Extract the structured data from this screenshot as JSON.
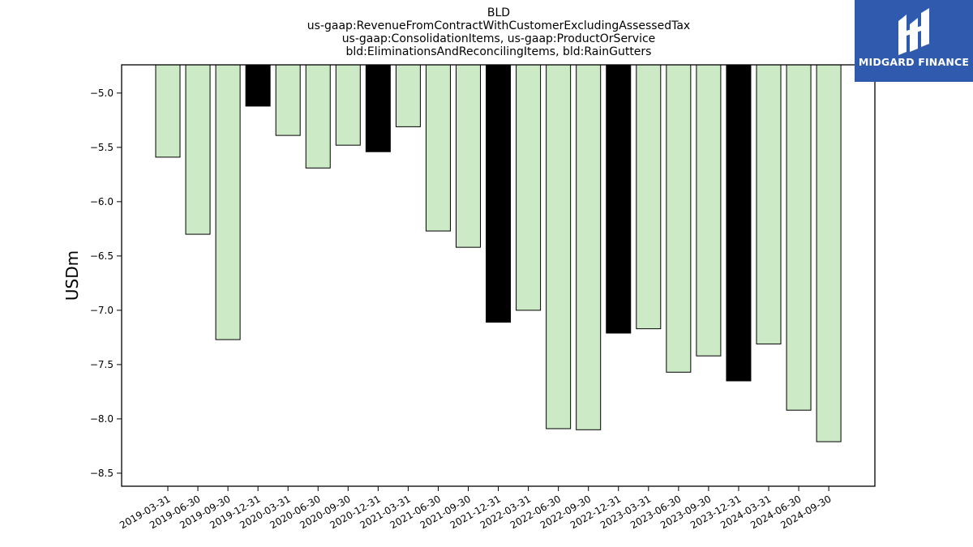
{
  "title_lines": [
    "BLD",
    "us-gaap:RevenueFromContractWithCustomerExcludingAssessedTax",
    "us-gaap:ConsolidationItems, us-gaap:ProductOrService",
    "bld:EliminationsAndReconcilingItems, bld:RainGutters"
  ],
  "logo": {
    "text": "MIDGARD FINANCE",
    "bg_color": "#2f5aad"
  },
  "chart_data": {
    "type": "bar",
    "title": "BLD us-gaap:RevenueFromContractWithCustomerExcludingAssessedTax us-gaap:ConsolidationItems, us-gaap:ProductOrService bld:EliminationsAndReconcilingItems, bld:RainGutters",
    "xlabel": "",
    "ylabel": "USDm",
    "ylim": [
      -8.62,
      -4.74
    ],
    "yticks": [
      -5.0,
      -5.5,
      -6.0,
      -6.5,
      -7.0,
      -7.5,
      -8.0,
      -8.5
    ],
    "ytick_labels": [
      "−5.0",
      "−5.5",
      "−6.0",
      "−6.5",
      "−7.0",
      "−7.5",
      "−8.0",
      "−8.5"
    ],
    "grid": false,
    "colors": {
      "quarter": "#cdeac6",
      "year_end": "#000000",
      "edge": "#000000"
    },
    "categories": [
      "2019-03-31",
      "2019-06-30",
      "2019-09-30",
      "2019-12-31",
      "2020-03-31",
      "2020-06-30",
      "2020-09-30",
      "2020-12-31",
      "2021-03-31",
      "2021-06-30",
      "2021-09-30",
      "2021-12-31",
      "2022-03-31",
      "2022-06-30",
      "2022-09-30",
      "2022-12-31",
      "2023-03-31",
      "2023-06-30",
      "2023-09-30",
      "2023-12-31",
      "2024-03-31",
      "2024-06-30",
      "2024-09-30"
    ],
    "values": [
      -5.59,
      -6.3,
      -7.27,
      -5.12,
      -5.39,
      -5.69,
      -5.48,
      -5.54,
      -5.31,
      -6.27,
      -6.42,
      -7.11,
      -7.0,
      -8.09,
      -8.1,
      -7.21,
      -7.17,
      -7.57,
      -7.42,
      -7.65,
      -7.31,
      -7.92,
      -8.21
    ],
    "highlight": [
      false,
      false,
      false,
      true,
      false,
      false,
      false,
      true,
      false,
      false,
      false,
      true,
      false,
      false,
      false,
      true,
      false,
      false,
      false,
      true,
      false,
      false,
      false
    ]
  }
}
